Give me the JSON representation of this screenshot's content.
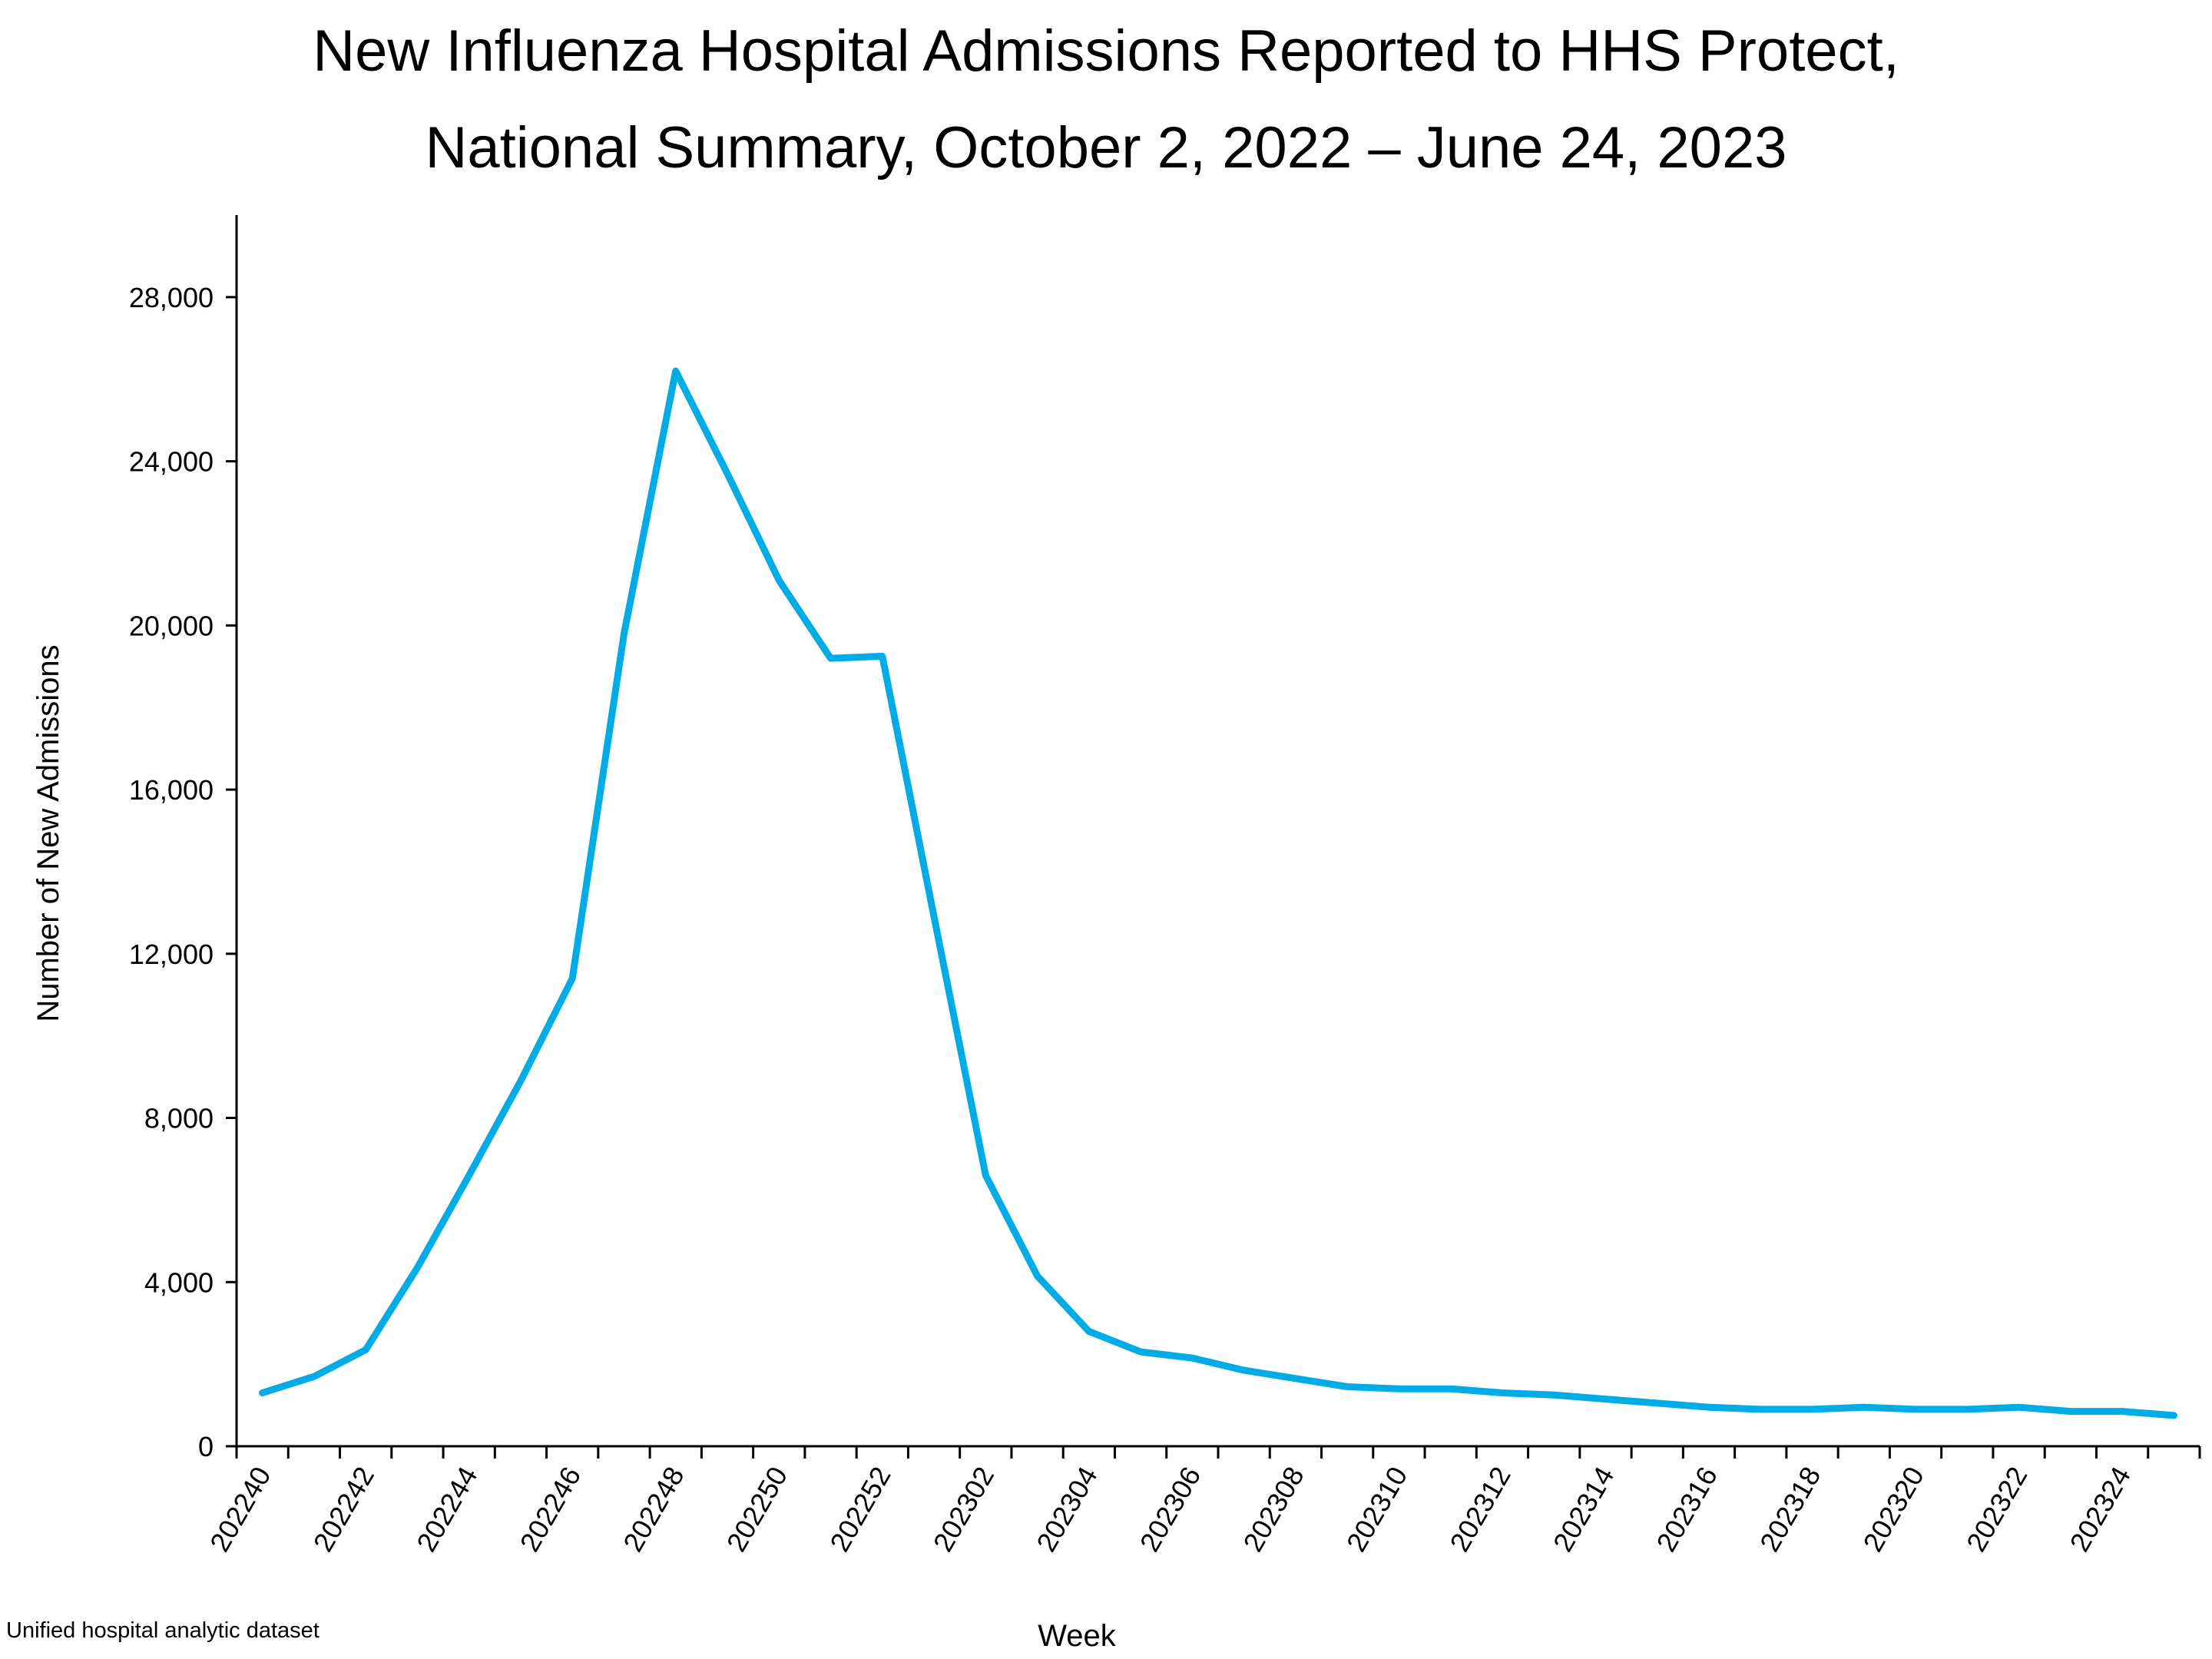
{
  "chart_data": {
    "type": "line",
    "title_lines": [
      "New Influenza Hospital Admissions Reported to HHS Protect,",
      "National Summary, October 2, 2022 – June 24, 2023"
    ],
    "xlabel": "Week",
    "ylabel": "Number of New Admissions",
    "source": "Unified hospital analytic dataset",
    "ylim": [
      0,
      30000
    ],
    "y_ticks": [
      0,
      4000,
      8000,
      12000,
      16000,
      20000,
      24000,
      28000
    ],
    "y_tick_labels": [
      "0",
      "4,000",
      "8,000",
      "12,000",
      "16,000",
      "20,000",
      "24,000",
      "28,000"
    ],
    "x_tick_labels": [
      "202240",
      "202242",
      "202244",
      "202246",
      "202248",
      "202250",
      "202252",
      "202302",
      "202304",
      "202306",
      "202308",
      "202310",
      "202312",
      "202314",
      "202316",
      "202318",
      "202320",
      "202322",
      "202324"
    ],
    "grid": false,
    "legend": "none",
    "line_color": "#00ACE6",
    "series": [
      {
        "values": [
          1300,
          1700,
          2350,
          4350,
          6600,
          8900,
          11400,
          19800,
          26200,
          23700,
          21100,
          19200,
          19250,
          12900,
          6600,
          4150,
          2800,
          2300,
          2150,
          1850,
          1650,
          1450,
          1400,
          1400,
          1300,
          1250,
          1150,
          1050,
          950,
          900,
          900,
          950,
          900,
          900,
          950,
          850,
          850,
          750
        ]
      }
    ]
  }
}
